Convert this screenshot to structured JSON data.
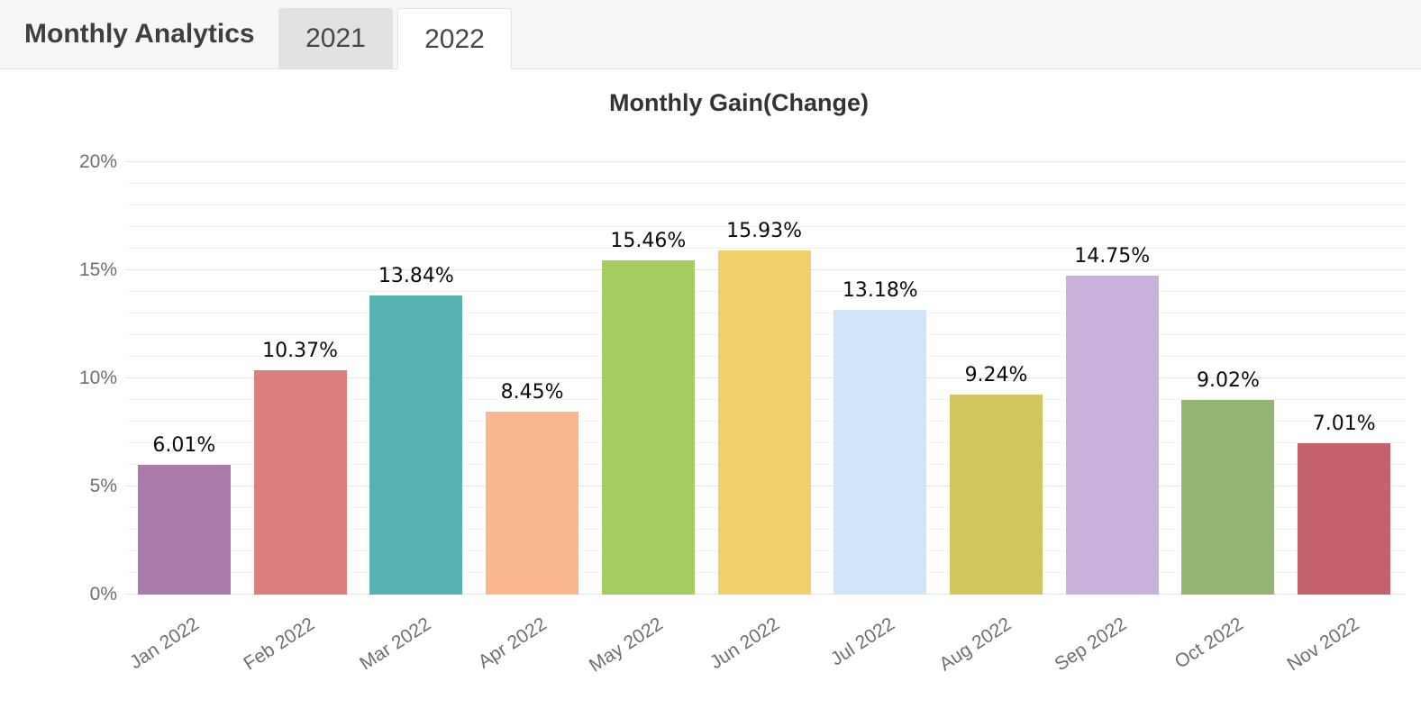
{
  "header": {
    "title": "Monthly Analytics",
    "tabs": [
      {
        "label": "2021",
        "active": false
      },
      {
        "label": "2022",
        "active": true
      }
    ]
  },
  "chart_data": {
    "type": "bar",
    "title": "Monthly Gain(Change)",
    "categories": [
      "Jan 2022",
      "Feb 2022",
      "Mar 2022",
      "Apr 2022",
      "May 2022",
      "Jun 2022",
      "Jul 2022",
      "Aug 2022",
      "Sep 2022",
      "Oct 2022",
      "Nov 2022"
    ],
    "values": [
      6.01,
      10.37,
      13.84,
      8.45,
      15.46,
      15.93,
      13.18,
      9.24,
      14.75,
      9.02,
      7.01
    ],
    "data_labels": [
      "6.01%",
      "10.37%",
      "13.84%",
      "8.45%",
      "15.46%",
      "15.93%",
      "13.18%",
      "9.24%",
      "14.75%",
      "9.02%",
      "7.01%"
    ],
    "bar_colors": [
      "#ab7cab",
      "#de7d7d",
      "#57b2b2",
      "#fab78d",
      "#a6cd60",
      "#f0d169",
      "#d1e5f8",
      "#d1c65f",
      "#c8b2db",
      "#94b573",
      "#c4616c"
    ],
    "y_ticks": [
      {
        "label": "0%",
        "value": 0
      },
      {
        "label": "5%",
        "value": 5
      },
      {
        "label": "10%",
        "value": 10
      },
      {
        "label": "15%",
        "value": 15
      },
      {
        "label": "20%",
        "value": 20
      }
    ],
    "ylim": [
      0,
      20
    ],
    "y_major_step": 5,
    "y_minor_step": 1,
    "grid": "on",
    "legend": "none",
    "xlabel": "",
    "ylabel": ""
  },
  "colors": {
    "header_bg": "#f7f7f7",
    "header_border": "#e2e2e2",
    "tab_inactive_bg": "#e2e2e2",
    "tab_active_bg": "#ffffff",
    "axis_text": "#6f6f6f",
    "data_label_text": "#0a0a0a",
    "grid_major": "#e2e2e2",
    "grid_minor": "#f3f3f3"
  }
}
